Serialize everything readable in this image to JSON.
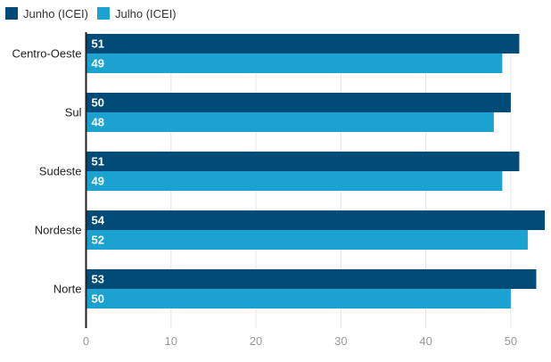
{
  "chart_data": {
    "type": "bar",
    "orientation": "horizontal",
    "categories": [
      "Centro-Oeste",
      "Sul",
      "Sudeste",
      "Nordeste",
      "Norte"
    ],
    "series": [
      {
        "name": "Junho (ICEI)",
        "color": "#004b77",
        "values": [
          51,
          50,
          51,
          54,
          53
        ]
      },
      {
        "name": "Julho (ICEI)",
        "color": "#1ca2d0",
        "values": [
          49,
          48,
          49,
          52,
          50
        ]
      }
    ],
    "xlim": [
      0,
      54
    ],
    "x_ticks": [
      0,
      10,
      20,
      30,
      40,
      50
    ],
    "legend_position": "top-left",
    "grid": true,
    "data_labels": "inside-start",
    "title": "",
    "xlabel": "",
    "ylabel": ""
  }
}
